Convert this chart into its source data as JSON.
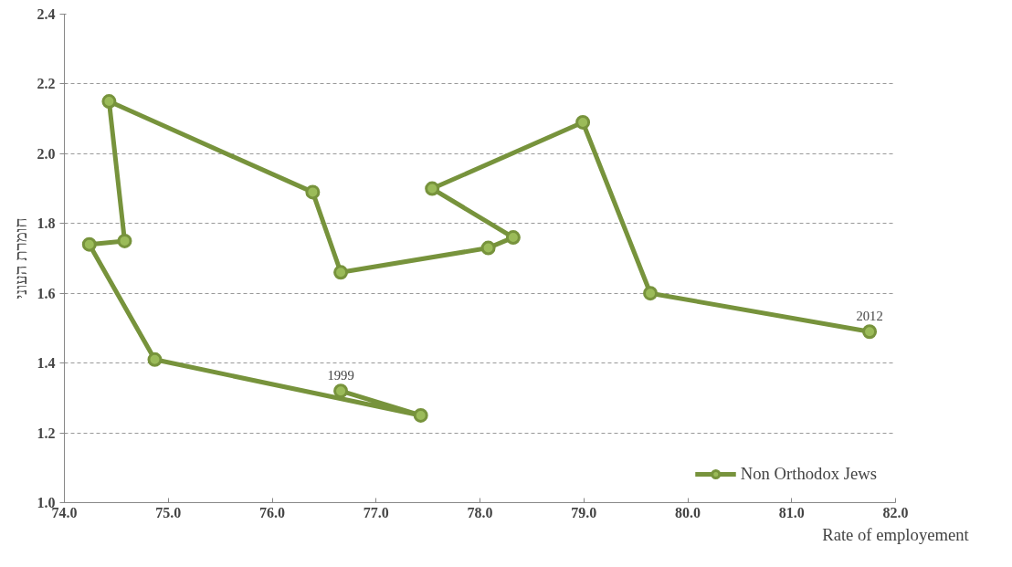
{
  "chart_data": {
    "type": "line",
    "xlabel": "Rate of employement",
    "ylabel": "חומרת העוני",
    "series": [
      {
        "name": "Non Orthodox Jews",
        "color": "#77933c",
        "x": [
          76.66,
          77.43,
          74.87,
          74.24,
          74.58,
          74.43,
          76.39,
          76.66,
          78.08,
          78.32,
          77.54,
          78.99,
          79.64,
          81.75
        ],
        "values": [
          1.32,
          1.25,
          1.41,
          1.74,
          1.75,
          2.15,
          1.89,
          1.66,
          1.73,
          1.76,
          1.9,
          2.09,
          1.6,
          1.49
        ]
      }
    ],
    "annotations": [
      {
        "text": "1999",
        "x": 76.66,
        "y": 1.32
      },
      {
        "text": "2012",
        "x": 81.75,
        "y": 1.49
      }
    ],
    "xlim": [
      74,
      82
    ],
    "ylim": [
      1.0,
      2.4
    ],
    "xticks": [
      {
        "value": 74,
        "label": "74.0"
      },
      {
        "value": 75,
        "label": "75.0"
      },
      {
        "value": 76,
        "label": "76.0"
      },
      {
        "value": 77,
        "label": "77.0"
      },
      {
        "value": 78,
        "label": "78.0"
      },
      {
        "value": 79,
        "label": "79.0"
      },
      {
        "value": 80,
        "label": "80.0"
      },
      {
        "value": 81,
        "label": "81.0"
      },
      {
        "value": 82,
        "label": "82.0"
      }
    ],
    "yticks": [
      {
        "value": 1.0,
        "label": "1.0"
      },
      {
        "value": 1.2,
        "label": "1.2"
      },
      {
        "value": 1.4,
        "label": "1.4"
      },
      {
        "value": 1.6,
        "label": "1.6"
      },
      {
        "value": 1.8,
        "label": "1.8"
      },
      {
        "value": 2.0,
        "label": "2.0"
      },
      {
        "value": 2.2,
        "label": "2.2"
      },
      {
        "value": 2.4,
        "label": "2.4"
      }
    ],
    "grid": "y",
    "legend": "bottom right",
    "marker": "circle",
    "line_style": "solid"
  }
}
